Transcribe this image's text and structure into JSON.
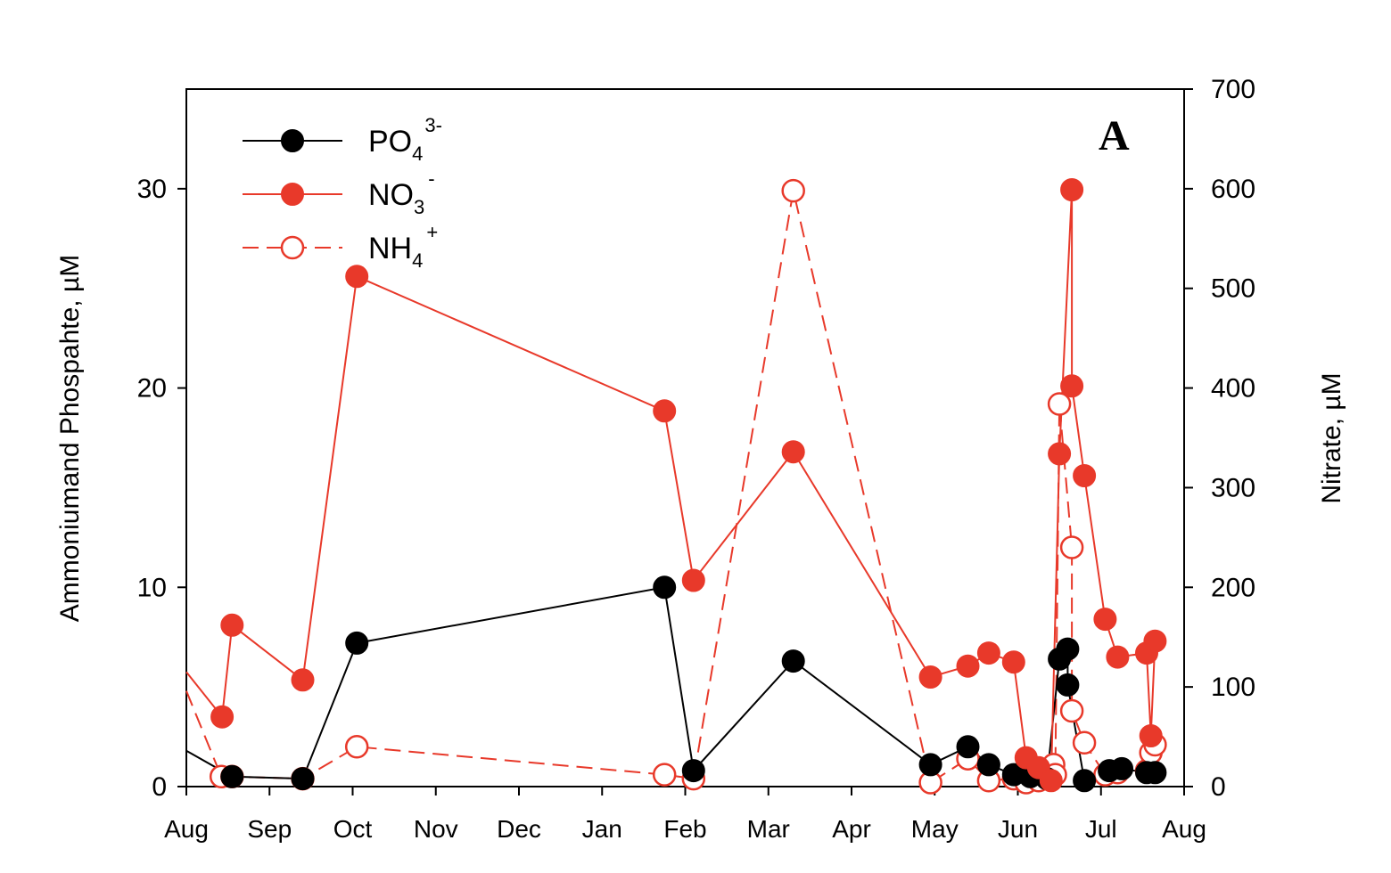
{
  "chart_data": {
    "type": "line",
    "panel_label": "A",
    "ylabel_left": "Ammoniumand Phospahte, µM",
    "ylabel_right": "Nitrate, µM",
    "ylim_left": [
      0,
      35
    ],
    "ylim_right": [
      0,
      700
    ],
    "yticks_left": [
      "0",
      "10",
      "20",
      "30"
    ],
    "yticks_right": [
      "0",
      "100",
      "200",
      "300",
      "400",
      "500",
      "600",
      "700"
    ],
    "x_tick_labels": [
      "Aug",
      "Sep",
      "Oct",
      "Nov",
      "Dec",
      "Jan",
      "Feb",
      "Mar",
      "Apr",
      "May",
      "Jun",
      "Jul",
      "Aug"
    ],
    "xlim_months": [
      0,
      12
    ],
    "colors": {
      "phosphate": "#000000",
      "nitrate": "#e8392a",
      "ammonium": "#e8392a"
    },
    "legend": {
      "phosphate": {
        "base": "PO",
        "sub": "4",
        "sup": "3-"
      },
      "nitrate": {
        "base": "NO",
        "sub": "3",
        "sup": "-"
      },
      "ammonium": {
        "base": "NH",
        "sub": "4",
        "sup": "+"
      }
    },
    "series": [
      {
        "key": "phosphate",
        "axis": "left",
        "style": "solid-filled",
        "points": [
          [
            0.0,
            1.8,
            false
          ],
          [
            0.55,
            0.5,
            true
          ],
          [
            1.4,
            0.4,
            true
          ],
          [
            2.05,
            7.2,
            true
          ],
          [
            5.75,
            10.0,
            true
          ],
          [
            6.1,
            0.8,
            true
          ],
          [
            7.3,
            6.3,
            true
          ],
          [
            8.95,
            1.1,
            true
          ],
          [
            9.4,
            2.0,
            true
          ],
          [
            9.65,
            1.1,
            true
          ],
          [
            9.95,
            0.6,
            true
          ],
          [
            10.15,
            0.5,
            true
          ],
          [
            10.35,
            0.4,
            true
          ],
          [
            10.5,
            6.4,
            true
          ],
          [
            10.6,
            6.9,
            true
          ],
          [
            10.6,
            5.1,
            true
          ],
          [
            10.8,
            0.3,
            true
          ],
          [
            11.1,
            0.8,
            true
          ],
          [
            11.25,
            0.9,
            true
          ],
          [
            11.55,
            0.7,
            true
          ],
          [
            11.65,
            0.7,
            true
          ]
        ]
      },
      {
        "key": "nitrate",
        "axis": "right",
        "style": "solid-filled",
        "points": [
          [
            0.0,
            115,
            false
          ],
          [
            0.43,
            70,
            true
          ],
          [
            0.55,
            162,
            true
          ],
          [
            1.4,
            107,
            true
          ],
          [
            2.05,
            512,
            true
          ],
          [
            5.75,
            377,
            true
          ],
          [
            6.1,
            207,
            true
          ],
          [
            7.3,
            336,
            true
          ],
          [
            8.95,
            110,
            true
          ],
          [
            9.4,
            121,
            true
          ],
          [
            9.65,
            134,
            true
          ],
          [
            9.95,
            125,
            true
          ],
          [
            10.1,
            29,
            true
          ],
          [
            10.25,
            19,
            true
          ],
          [
            10.4,
            6,
            true
          ],
          [
            10.5,
            334,
            true
          ],
          [
            10.65,
            599,
            true
          ],
          [
            10.65,
            402,
            true
          ],
          [
            10.8,
            312,
            true
          ],
          [
            11.05,
            168,
            true
          ],
          [
            11.2,
            130,
            true
          ],
          [
            11.55,
            134,
            true
          ],
          [
            11.6,
            51,
            true
          ],
          [
            11.65,
            146,
            true
          ]
        ]
      },
      {
        "key": "ammonium",
        "axis": "left",
        "style": "dashed-open",
        "points": [
          [
            0.0,
            4.8,
            false
          ],
          [
            0.42,
            0.5,
            true
          ],
          [
            0.55,
            0.5,
            true
          ],
          [
            1.4,
            0.4,
            true
          ],
          [
            2.05,
            2.0,
            true
          ],
          [
            5.75,
            0.6,
            true
          ],
          [
            6.1,
            0.4,
            true
          ],
          [
            7.3,
            29.9,
            true
          ],
          [
            8.95,
            0.2,
            true
          ],
          [
            9.4,
            1.4,
            true
          ],
          [
            9.65,
            0.3,
            true
          ],
          [
            9.95,
            0.4,
            true
          ],
          [
            10.1,
            0.2,
            true
          ],
          [
            10.25,
            0.3,
            true
          ],
          [
            10.35,
            0.5,
            true
          ],
          [
            10.43,
            1.1,
            true
          ],
          [
            10.45,
            0.6,
            true
          ],
          [
            10.5,
            19.2,
            true
          ],
          [
            10.65,
            12.0,
            true
          ],
          [
            10.65,
            3.8,
            true
          ],
          [
            10.8,
            2.2,
            true
          ],
          [
            11.05,
            0.6,
            true
          ],
          [
            11.2,
            0.7,
            true
          ],
          [
            11.55,
            0.8,
            true
          ],
          [
            11.6,
            1.7,
            true
          ],
          [
            11.65,
            2.1,
            true
          ]
        ]
      }
    ]
  }
}
